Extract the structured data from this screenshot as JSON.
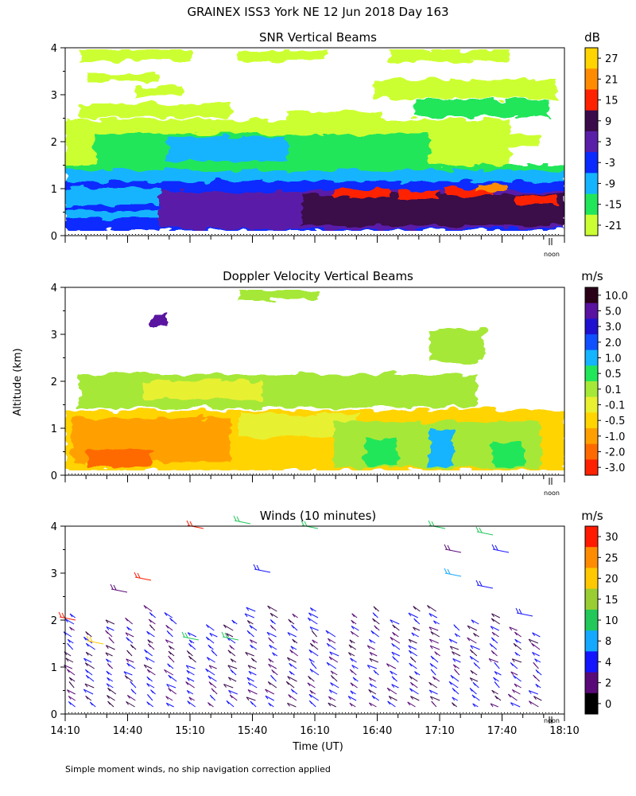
{
  "figure": {
    "title": "GRAINEX ISS3 York NE  12 Jun 2018 Day 163",
    "ylabel": "Altitude (km)",
    "xlabel": "Time (UT)",
    "footnote": "Simple moment winds, no ship navigation correction applied",
    "noon_marker_label": "noon"
  },
  "chart_data": [
    {
      "type": "heatmap",
      "title": "SNR Vertical Beams",
      "units": "dB",
      "ylim": [
        0,
        4
      ],
      "yticks": [
        "0",
        "1",
        "2",
        "3",
        "4"
      ],
      "xlim": [
        "14:10",
        "18:10"
      ],
      "colorbar": {
        "labels": [
          "27",
          "21",
          "15",
          "9",
          "3",
          "-3",
          "-9",
          "-15",
          "-21"
        ],
        "colors": [
          "#ffd400",
          "#ff8c00",
          "#ff2200",
          "#3a0a4a",
          "#5a1fa8",
          "#0a2aff",
          "#14b4ff",
          "#22e65a",
          "#ccff33"
        ]
      }
    },
    {
      "type": "heatmap",
      "title": "Doppler Velocity Vertical Beams",
      "units": "m/s",
      "ylim": [
        0,
        4
      ],
      "yticks": [
        "0",
        "1",
        "2",
        "3",
        "4"
      ],
      "xlim": [
        "14:10",
        "18:10"
      ],
      "colorbar": {
        "labels": [
          "10.0",
          "5.0",
          "3.0",
          "2.0",
          "1.0",
          "0.5",
          "0.1",
          "-0.1",
          "-0.5",
          "-1.0",
          "-2.0",
          "-3.0"
        ],
        "colors": [
          "#2a0018",
          "#5a12a0",
          "#1e12d0",
          "#1050ff",
          "#14b4ff",
          "#22e65a",
          "#a6e838",
          "#e8f030",
          "#ffd400",
          "#ffa000",
          "#ff6a00",
          "#ff2200"
        ]
      }
    },
    {
      "type": "scatter",
      "title": "Winds (10 minutes)",
      "units": "m/s",
      "ylim": [
        0,
        4
      ],
      "yticks": [
        "0",
        "1",
        "2",
        "3",
        "4"
      ],
      "xticks": [
        "14:10",
        "14:40",
        "15:10",
        "15:40",
        "16:10",
        "16:40",
        "17:10",
        "17:40",
        "18:10"
      ],
      "colorbar": {
        "labels": [
          "30",
          "25",
          "20",
          "15",
          "10",
          "8",
          "4",
          "2",
          "0"
        ],
        "colors": [
          "#ff1a00",
          "#ff8c00",
          "#ffc800",
          "#9acd32",
          "#22c85a",
          "#14a8ff",
          "#1414ff",
          "#5a0a78",
          "#000000"
        ]
      }
    }
  ]
}
